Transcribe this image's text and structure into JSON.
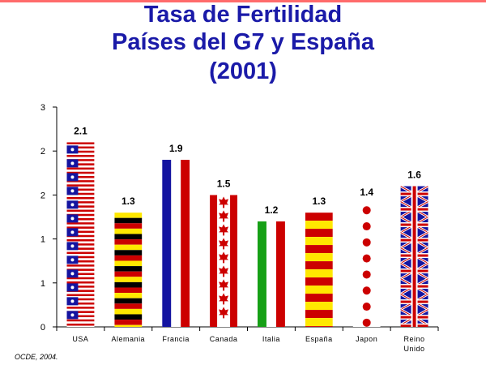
{
  "header": {
    "title_line1": "Tasa de Fertilidad",
    "title_line2": "Países del G7 y España",
    "title_line3": "(2001)"
  },
  "footer": {
    "source": "OCDE, 2004."
  },
  "chart_data": {
    "type": "bar",
    "categories": [
      "USA",
      "Alemania",
      "Francia",
      "Canada",
      "Italia",
      "España",
      "Japon",
      "Reino Unido"
    ],
    "category_labels": [
      [
        "USA"
      ],
      [
        "Alemania"
      ],
      [
        "Francia"
      ],
      [
        "Canada"
      ],
      [
        "Italia"
      ],
      [
        "España"
      ],
      [
        "Japon"
      ],
      [
        "Reino",
        "Unido"
      ]
    ],
    "values": [
      2.1,
      1.3,
      1.9,
      1.5,
      1.2,
      1.3,
      1.4,
      1.6
    ],
    "value_labels": [
      "2.1",
      "1.3",
      "1.9",
      "1.5",
      "1.2",
      "1.3",
      "1.4",
      "1.6"
    ],
    "y_tick_labels": [
      "0",
      "1",
      "1",
      "2",
      "2",
      "3"
    ],
    "ylim": [
      0,
      2.5
    ],
    "grid": false,
    "legend": "none",
    "bar_styles": [
      "flag-usa",
      "flag-germany",
      "flag-france",
      "flag-canada",
      "flag-italy",
      "flag-spain",
      "flag-japan",
      "flag-uk"
    ],
    "colors": {
      "red": "#cc0000",
      "blue": "#1414a0",
      "green": "#16a016",
      "yellow": "#ffe800",
      "black": "#000000",
      "white": "#ffffff"
    }
  }
}
